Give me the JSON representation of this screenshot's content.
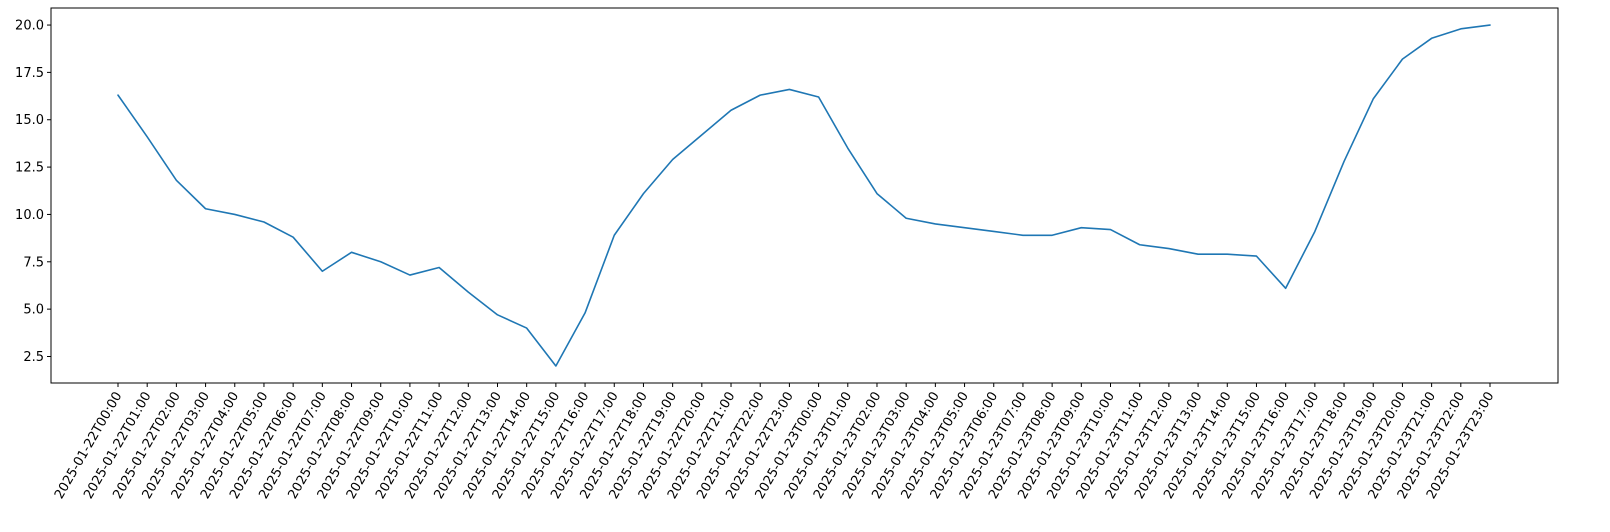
{
  "chart_data": {
    "type": "line",
    "title": "",
    "xlabel": "",
    "ylabel": "",
    "grid": false,
    "ylim": [
      1.1,
      20.9
    ],
    "yticks": [
      2.5,
      5.0,
      7.5,
      10.0,
      12.5,
      15.0,
      17.5,
      20.0
    ],
    "ytick_labels": [
      "2.5",
      "5.0",
      "7.5",
      "10.0",
      "12.5",
      "15.0",
      "17.5",
      "20.0"
    ],
    "x": [
      "2025-01-22T00:00",
      "2025-01-22T01:00",
      "2025-01-22T02:00",
      "2025-01-22T03:00",
      "2025-01-22T04:00",
      "2025-01-22T05:00",
      "2025-01-22T06:00",
      "2025-01-22T07:00",
      "2025-01-22T08:00",
      "2025-01-22T09:00",
      "2025-01-22T10:00",
      "2025-01-22T11:00",
      "2025-01-22T12:00",
      "2025-01-22T13:00",
      "2025-01-22T14:00",
      "2025-01-22T15:00",
      "2025-01-22T16:00",
      "2025-01-22T17:00",
      "2025-01-22T18:00",
      "2025-01-22T19:00",
      "2025-01-22T20:00",
      "2025-01-22T21:00",
      "2025-01-22T22:00",
      "2025-01-22T23:00",
      "2025-01-23T00:00",
      "2025-01-23T01:00",
      "2025-01-23T02:00",
      "2025-01-23T03:00",
      "2025-01-23T04:00",
      "2025-01-23T05:00",
      "2025-01-23T06:00",
      "2025-01-23T07:00",
      "2025-01-23T08:00",
      "2025-01-23T09:00",
      "2025-01-23T10:00",
      "2025-01-23T11:00",
      "2025-01-23T12:00",
      "2025-01-23T13:00",
      "2025-01-23T14:00",
      "2025-01-23T15:00",
      "2025-01-23T16:00",
      "2025-01-23T17:00",
      "2025-01-23T18:00",
      "2025-01-23T19:00",
      "2025-01-23T20:00",
      "2025-01-23T21:00",
      "2025-01-23T22:00",
      "2025-01-23T23:00"
    ],
    "series": [
      {
        "color": "#1f77b4",
        "values": [
          16.3,
          14.1,
          11.8,
          10.3,
          10.0,
          9.6,
          8.8,
          7.0,
          8.0,
          7.5,
          6.8,
          7.2,
          5.9,
          4.7,
          4.0,
          2.0,
          4.8,
          8.9,
          11.1,
          12.9,
          14.2,
          15.5,
          16.3,
          16.6,
          16.2,
          13.5,
          11.1,
          9.8,
          9.5,
          9.3,
          9.1,
          8.9,
          8.9,
          9.3,
          9.2,
          8.4,
          8.2,
          7.9,
          7.9,
          7.8,
          6.1,
          9.1,
          12.8,
          16.1,
          18.2,
          19.3,
          19.8,
          20.0
        ]
      }
    ]
  }
}
